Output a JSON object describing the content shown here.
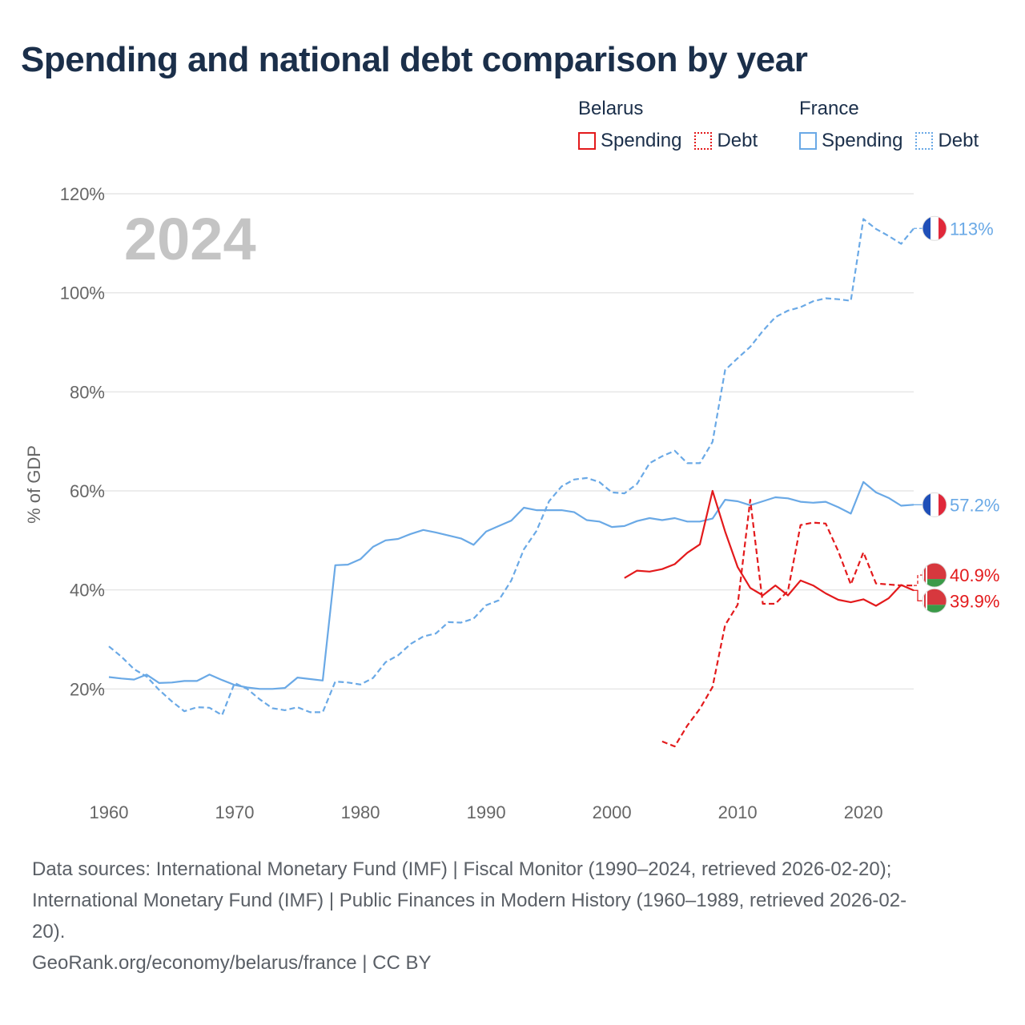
{
  "title": "Spending and national debt comparison by year",
  "year_watermark": "2024",
  "legend": {
    "groups": [
      {
        "label": "Belarus",
        "color": "#e31a1c",
        "items": [
          {
            "label": "Spending",
            "style": "solid"
          },
          {
            "label": "Debt",
            "style": "dotted"
          }
        ]
      },
      {
        "label": "France",
        "color": "#6aa9e6",
        "items": [
          {
            "label": "Spending",
            "style": "solid"
          },
          {
            "label": "Debt",
            "style": "dotted"
          }
        ]
      }
    ]
  },
  "sources": {
    "line1": "Data sources: International Monetary Fund (IMF) | Fiscal Monitor (1990–2024, retrieved 2026-02-20);",
    "line2": "International Monetary Fund (IMF) | Public Finances in Modern History (1960–1989, retrieved 2026-02-",
    "line3": "20).",
    "line4": "GeoRank.org/economy/belarus/france | CC BY"
  },
  "chart_data": {
    "type": "line",
    "title": "Spending and national debt comparison by year",
    "xlabel": "",
    "ylabel": "% of GDP",
    "xlim": [
      1960,
      2024
    ],
    "ylim": [
      0,
      120
    ],
    "x_ticks": [
      1960,
      1970,
      1980,
      1990,
      2000,
      2010,
      2020
    ],
    "y_ticks": [
      20,
      40,
      60,
      80,
      100,
      120
    ],
    "y_tick_labels": [
      "20%",
      "40%",
      "60%",
      "80%",
      "100%",
      "120%"
    ],
    "grid": true,
    "series": [
      {
        "name": "France Spending",
        "country": "France",
        "kind": "Spending",
        "color": "#6aa9e6",
        "dash": "solid",
        "end_label": "57.2%",
        "x": [
          1960,
          1961,
          1962,
          1963,
          1964,
          1965,
          1966,
          1967,
          1968,
          1969,
          1970,
          1971,
          1972,
          1973,
          1974,
          1975,
          1976,
          1977,
          1978,
          1979,
          1980,
          1981,
          1982,
          1983,
          1984,
          1985,
          1986,
          1987,
          1988,
          1989,
          1990,
          1991,
          1992,
          1993,
          1994,
          1995,
          1996,
          1997,
          1998,
          1999,
          2000,
          2001,
          2002,
          2003,
          2004,
          2005,
          2006,
          2007,
          2008,
          2009,
          2010,
          2011,
          2012,
          2013,
          2014,
          2015,
          2016,
          2017,
          2018,
          2019,
          2020,
          2021,
          2022,
          2023,
          2024
        ],
        "values": [
          22.4,
          22.1,
          21.9,
          22.9,
          21.2,
          21.3,
          21.6,
          21.6,
          22.9,
          21.8,
          20.8,
          20.3,
          20.0,
          20.0,
          20.2,
          22.3,
          22.0,
          21.7,
          45.0,
          45.1,
          46.2,
          48.7,
          50.0,
          50.3,
          51.3,
          52.1,
          51.6,
          51.0,
          50.4,
          49.1,
          51.8,
          52.9,
          54.0,
          56.6,
          56.1,
          56.1,
          56.1,
          55.7,
          54.1,
          53.8,
          52.7,
          52.9,
          53.9,
          54.5,
          54.1,
          54.5,
          53.8,
          53.8,
          54.4,
          58.2,
          57.9,
          57.1,
          57.9,
          58.7,
          58.5,
          57.8,
          57.6,
          57.8,
          56.7,
          55.4,
          61.8,
          59.7,
          58.6,
          57.0,
          57.2
        ]
      },
      {
        "name": "France Debt",
        "country": "France",
        "kind": "Debt",
        "color": "#6aa9e6",
        "dash": "dashed",
        "end_label": "113%",
        "x": [
          1960,
          1961,
          1962,
          1963,
          1964,
          1965,
          1966,
          1967,
          1968,
          1969,
          1970,
          1971,
          1972,
          1973,
          1974,
          1975,
          1976,
          1977,
          1978,
          1979,
          1980,
          1981,
          1982,
          1983,
          1984,
          1985,
          1986,
          1987,
          1988,
          1989,
          1990,
          1991,
          1992,
          1993,
          1994,
          1995,
          1996,
          1997,
          1998,
          1999,
          2000,
          2001,
          2002,
          2003,
          2004,
          2005,
          2006,
          2007,
          2008,
          2009,
          2010,
          2011,
          2012,
          2013,
          2014,
          2015,
          2016,
          2017,
          2018,
          2019,
          2020,
          2021,
          2022,
          2023,
          2024
        ],
        "values": [
          28.6,
          26.5,
          24.0,
          22.5,
          19.8,
          17.5,
          15.5,
          16.3,
          16.2,
          14.7,
          21.2,
          20.0,
          17.9,
          16.1,
          15.7,
          16.3,
          15.3,
          15.3,
          21.5,
          21.3,
          20.9,
          22.2,
          25.4,
          26.8,
          29.1,
          30.6,
          31.2,
          33.5,
          33.4,
          34.2,
          36.9,
          37.9,
          41.9,
          48.2,
          51.9,
          57.9,
          60.9,
          62.3,
          62.6,
          61.8,
          59.7,
          59.5,
          61.4,
          65.6,
          67.0,
          68.1,
          65.6,
          65.6,
          69.9,
          84.4,
          86.8,
          89.1,
          92.3,
          95.1,
          96.4,
          97.1,
          98.3,
          98.9,
          98.7,
          98.4,
          114.9,
          112.9,
          111.5,
          109.9,
          113.0
        ]
      },
      {
        "name": "Belarus Spending",
        "country": "Belarus",
        "kind": "Spending",
        "color": "#e31a1c",
        "dash": "solid",
        "end_label": "39.9%",
        "x": [
          2001,
          2002,
          2003,
          2004,
          2005,
          2006,
          2007,
          2008,
          2009,
          2010,
          2011,
          2012,
          2013,
          2014,
          2015,
          2016,
          2017,
          2018,
          2019,
          2020,
          2021,
          2022,
          2023,
          2024
        ],
        "values": [
          42.4,
          43.9,
          43.7,
          44.2,
          45.2,
          47.5,
          49.2,
          60.0,
          51.8,
          44.6,
          40.4,
          38.9,
          40.9,
          38.9,
          41.9,
          40.9,
          39.3,
          38.0,
          37.5,
          38.1,
          36.8,
          38.3,
          41.0,
          39.9
        ]
      },
      {
        "name": "Belarus Debt",
        "country": "Belarus",
        "kind": "Debt",
        "color": "#e31a1c",
        "dash": "dashed",
        "end_label": "40.9%",
        "x": [
          2004,
          2005,
          2006,
          2007,
          2008,
          2009,
          2010,
          2011,
          2012,
          2013,
          2014,
          2015,
          2016,
          2017,
          2018,
          2019,
          2020,
          2021,
          2022,
          2023,
          2024
        ],
        "values": [
          9.4,
          8.4,
          12.6,
          16.0,
          20.4,
          32.9,
          37.0,
          58.2,
          37.2,
          37.2,
          39.8,
          53.1,
          53.6,
          53.4,
          47.8,
          41.1,
          47.6,
          41.3,
          41.1,
          40.9,
          40.9
        ]
      }
    ]
  }
}
